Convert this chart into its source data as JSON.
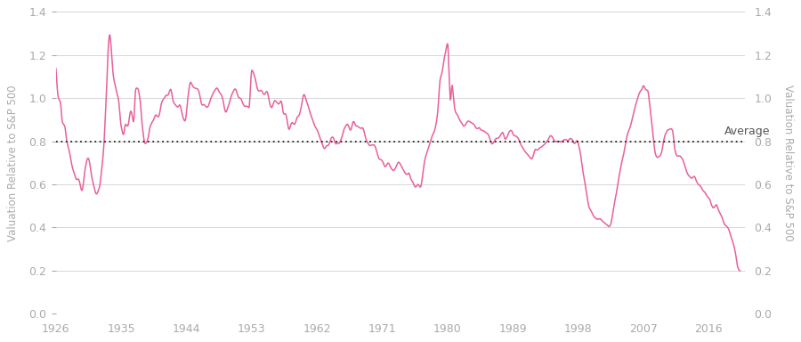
{
  "ylabel_left": "Valuation Relative to S&P 500",
  "ylabel_right": "Valuation Relative to S&P 500",
  "average_label": "Average",
  "average_value": 0.8,
  "line_color": "#e8609a",
  "dotted_line_color": "#222222",
  "background_color": "#ffffff",
  "grid_color": "#d0d0d0",
  "text_color": "#aaaaaa",
  "avg_text_color": "#555555",
  "ylim": [
    0.0,
    1.4
  ],
  "yticks": [
    0.0,
    0.2,
    0.4,
    0.6,
    0.8,
    1.0,
    1.2,
    1.4
  ],
  "xticks": [
    1926,
    1935,
    1944,
    1953,
    1962,
    1971,
    1980,
    1989,
    1998,
    2007,
    2016
  ],
  "xlim": [
    1926,
    2021
  ],
  "line_width": 1.1,
  "figsize": [
    9.0,
    3.84
  ],
  "dpi": 100,
  "anchors": [
    [
      1926.0,
      1.12
    ],
    [
      1926.3,
      1.01
    ],
    [
      1926.6,
      0.99
    ],
    [
      1926.9,
      0.89
    ],
    [
      1927.2,
      0.88
    ],
    [
      1927.5,
      0.8
    ],
    [
      1927.8,
      0.75
    ],
    [
      1928.1,
      0.72
    ],
    [
      1928.5,
      0.67
    ],
    [
      1929.0,
      0.63
    ],
    [
      1929.5,
      0.58
    ],
    [
      1930.0,
      0.65
    ],
    [
      1930.5,
      0.72
    ],
    [
      1931.0,
      0.63
    ],
    [
      1931.5,
      0.58
    ],
    [
      1932.0,
      0.57
    ],
    [
      1932.3,
      0.65
    ],
    [
      1932.6,
      0.78
    ],
    [
      1933.0,
      1.06
    ],
    [
      1933.2,
      1.21
    ],
    [
      1933.4,
      1.27
    ],
    [
      1933.6,
      1.22
    ],
    [
      1933.8,
      1.13
    ],
    [
      1934.0,
      1.07
    ],
    [
      1934.3,
      1.04
    ],
    [
      1934.6,
      1.0
    ],
    [
      1935.0,
      0.85
    ],
    [
      1935.3,
      0.82
    ],
    [
      1935.6,
      0.88
    ],
    [
      1935.9,
      0.87
    ],
    [
      1936.3,
      0.93
    ],
    [
      1936.7,
      0.88
    ],
    [
      1937.0,
      1.06
    ],
    [
      1937.3,
      1.08
    ],
    [
      1937.6,
      1.02
    ],
    [
      1937.9,
      0.9
    ],
    [
      1938.3,
      0.82
    ],
    [
      1938.7,
      0.82
    ],
    [
      1939.0,
      0.85
    ],
    [
      1939.4,
      0.88
    ],
    [
      1939.8,
      0.92
    ],
    [
      1940.2,
      0.93
    ],
    [
      1940.6,
      0.98
    ],
    [
      1941.0,
      1.0
    ],
    [
      1941.4,
      1.02
    ],
    [
      1941.8,
      1.04
    ],
    [
      1942.2,
      0.99
    ],
    [
      1942.6,
      0.97
    ],
    [
      1943.0,
      0.98
    ],
    [
      1943.4,
      0.93
    ],
    [
      1943.8,
      0.9
    ],
    [
      1944.2,
      1.0
    ],
    [
      1944.6,
      1.07
    ],
    [
      1945.0,
      1.05
    ],
    [
      1945.4,
      1.03
    ],
    [
      1945.8,
      1.01
    ],
    [
      1946.2,
      0.97
    ],
    [
      1946.6,
      0.97
    ],
    [
      1947.0,
      0.97
    ],
    [
      1947.4,
      1.0
    ],
    [
      1947.8,
      1.02
    ],
    [
      1948.2,
      1.04
    ],
    [
      1948.6,
      1.01
    ],
    [
      1949.0,
      1.0
    ],
    [
      1949.4,
      0.97
    ],
    [
      1949.8,
      0.98
    ],
    [
      1950.2,
      1.01
    ],
    [
      1950.6,
      1.02
    ],
    [
      1951.0,
      1.01
    ],
    [
      1951.4,
      1.0
    ],
    [
      1951.8,
      0.99
    ],
    [
      1952.2,
      0.96
    ],
    [
      1952.6,
      0.95
    ],
    [
      1953.0,
      1.14
    ],
    [
      1953.4,
      1.1
    ],
    [
      1953.8,
      1.06
    ],
    [
      1954.2,
      1.05
    ],
    [
      1954.6,
      1.04
    ],
    [
      1955.0,
      1.01
    ],
    [
      1955.4,
      0.98
    ],
    [
      1955.8,
      0.98
    ],
    [
      1956.2,
      0.99
    ],
    [
      1956.6,
      0.99
    ],
    [
      1957.0,
      1.0
    ],
    [
      1957.4,
      0.93
    ],
    [
      1957.8,
      0.92
    ],
    [
      1958.2,
      0.89
    ],
    [
      1958.6,
      0.89
    ],
    [
      1959.0,
      0.88
    ],
    [
      1959.4,
      0.9
    ],
    [
      1959.8,
      0.96
    ],
    [
      1960.2,
      1.01
    ],
    [
      1960.6,
      0.99
    ],
    [
      1961.0,
      0.97
    ],
    [
      1961.4,
      0.93
    ],
    [
      1961.8,
      0.88
    ],
    [
      1962.2,
      0.83
    ],
    [
      1962.6,
      0.79
    ],
    [
      1963.0,
      0.75
    ],
    [
      1963.4,
      0.79
    ],
    [
      1963.8,
      0.82
    ],
    [
      1964.2,
      0.83
    ],
    [
      1964.6,
      0.8
    ],
    [
      1965.0,
      0.79
    ],
    [
      1965.4,
      0.82
    ],
    [
      1965.8,
      0.86
    ],
    [
      1966.2,
      0.87
    ],
    [
      1966.6,
      0.86
    ],
    [
      1967.0,
      0.89
    ],
    [
      1967.4,
      0.87
    ],
    [
      1967.8,
      0.87
    ],
    [
      1968.2,
      0.87
    ],
    [
      1968.6,
      0.85
    ],
    [
      1969.0,
      0.82
    ],
    [
      1969.4,
      0.8
    ],
    [
      1969.8,
      0.77
    ],
    [
      1970.2,
      0.75
    ],
    [
      1970.6,
      0.73
    ],
    [
      1971.0,
      0.72
    ],
    [
      1971.4,
      0.7
    ],
    [
      1971.8,
      0.7
    ],
    [
      1972.2,
      0.69
    ],
    [
      1972.6,
      0.68
    ],
    [
      1973.0,
      0.68
    ],
    [
      1973.4,
      0.67
    ],
    [
      1973.8,
      0.66
    ],
    [
      1974.2,
      0.64
    ],
    [
      1974.6,
      0.63
    ],
    [
      1975.0,
      0.59
    ],
    [
      1975.4,
      0.58
    ],
    [
      1975.8,
      0.59
    ],
    [
      1976.2,
      0.61
    ],
    [
      1976.6,
      0.65
    ],
    [
      1977.0,
      0.71
    ],
    [
      1977.4,
      0.77
    ],
    [
      1977.8,
      0.81
    ],
    [
      1978.2,
      0.85
    ],
    [
      1978.6,
      0.92
    ],
    [
      1979.0,
      1.1
    ],
    [
      1979.3,
      1.14
    ],
    [
      1979.6,
      1.2
    ],
    [
      1980.0,
      1.25
    ],
    [
      1980.2,
      1.1
    ],
    [
      1980.4,
      0.98
    ],
    [
      1980.6,
      1.05
    ],
    [
      1980.8,
      1.0
    ],
    [
      1981.0,
      0.95
    ],
    [
      1981.3,
      0.93
    ],
    [
      1981.6,
      0.91
    ],
    [
      1981.9,
      0.9
    ],
    [
      1982.2,
      0.88
    ],
    [
      1982.5,
      0.89
    ],
    [
      1982.8,
      0.9
    ],
    [
      1983.1,
      0.9
    ],
    [
      1983.4,
      0.89
    ],
    [
      1983.7,
      0.88
    ],
    [
      1984.0,
      0.87
    ],
    [
      1984.3,
      0.87
    ],
    [
      1984.6,
      0.85
    ],
    [
      1984.9,
      0.84
    ],
    [
      1985.2,
      0.83
    ],
    [
      1985.5,
      0.82
    ],
    [
      1985.8,
      0.81
    ],
    [
      1986.1,
      0.8
    ],
    [
      1986.4,
      0.81
    ],
    [
      1986.7,
      0.82
    ],
    [
      1987.0,
      0.83
    ],
    [
      1987.3,
      0.83
    ],
    [
      1987.6,
      0.84
    ],
    [
      1987.9,
      0.82
    ],
    [
      1988.2,
      0.83
    ],
    [
      1988.5,
      0.84
    ],
    [
      1988.8,
      0.85
    ],
    [
      1989.1,
      0.83
    ],
    [
      1989.4,
      0.82
    ],
    [
      1989.7,
      0.81
    ],
    [
      1990.0,
      0.79
    ],
    [
      1990.3,
      0.78
    ],
    [
      1990.6,
      0.76
    ],
    [
      1990.9,
      0.74
    ],
    [
      1991.2,
      0.73
    ],
    [
      1991.5,
      0.73
    ],
    [
      1991.8,
      0.74
    ],
    [
      1992.1,
      0.76
    ],
    [
      1992.4,
      0.76
    ],
    [
      1992.7,
      0.77
    ],
    [
      1993.0,
      0.78
    ],
    [
      1993.3,
      0.79
    ],
    [
      1993.6,
      0.8
    ],
    [
      1993.9,
      0.81
    ],
    [
      1994.2,
      0.82
    ],
    [
      1994.5,
      0.82
    ],
    [
      1994.8,
      0.81
    ],
    [
      1995.1,
      0.81
    ],
    [
      1995.4,
      0.81
    ],
    [
      1995.7,
      0.8
    ],
    [
      1996.0,
      0.8
    ],
    [
      1996.3,
      0.8
    ],
    [
      1996.6,
      0.79
    ],
    [
      1996.9,
      0.8
    ],
    [
      1997.2,
      0.8
    ],
    [
      1997.5,
      0.79
    ],
    [
      1997.8,
      0.79
    ],
    [
      1998.0,
      0.78
    ],
    [
      1998.3,
      0.75
    ],
    [
      1998.6,
      0.68
    ],
    [
      1998.9,
      0.62
    ],
    [
      1999.2,
      0.55
    ],
    [
      1999.5,
      0.49
    ],
    [
      1999.8,
      0.47
    ],
    [
      2000.1,
      0.46
    ],
    [
      2000.4,
      0.45
    ],
    [
      2000.7,
      0.44
    ],
    [
      2001.0,
      0.44
    ],
    [
      2001.3,
      0.43
    ],
    [
      2001.6,
      0.42
    ],
    [
      2001.9,
      0.41
    ],
    [
      2002.2,
      0.4
    ],
    [
      2002.5,
      0.42
    ],
    [
      2002.8,
      0.47
    ],
    [
      2003.2,
      0.55
    ],
    [
      2003.6,
      0.63
    ],
    [
      2004.0,
      0.7
    ],
    [
      2004.4,
      0.76
    ],
    [
      2004.8,
      0.82
    ],
    [
      2005.2,
      0.87
    ],
    [
      2005.6,
      0.92
    ],
    [
      2006.0,
      0.97
    ],
    [
      2006.4,
      1.01
    ],
    [
      2006.8,
      1.04
    ],
    [
      2007.0,
      1.06
    ],
    [
      2007.2,
      1.05
    ],
    [
      2007.4,
      1.04
    ],
    [
      2007.6,
      1.03
    ],
    [
      2007.8,
      0.98
    ],
    [
      2008.0,
      0.92
    ],
    [
      2008.3,
      0.82
    ],
    [
      2008.6,
      0.74
    ],
    [
      2008.9,
      0.72
    ],
    [
      2009.2,
      0.73
    ],
    [
      2009.5,
      0.75
    ],
    [
      2009.8,
      0.8
    ],
    [
      2010.1,
      0.84
    ],
    [
      2010.4,
      0.86
    ],
    [
      2010.7,
      0.86
    ],
    [
      2011.0,
      0.85
    ],
    [
      2011.3,
      0.77
    ],
    [
      2011.6,
      0.73
    ],
    [
      2011.9,
      0.72
    ],
    [
      2012.2,
      0.71
    ],
    [
      2012.5,
      0.7
    ],
    [
      2012.8,
      0.68
    ],
    [
      2013.1,
      0.66
    ],
    [
      2013.4,
      0.65
    ],
    [
      2013.7,
      0.64
    ],
    [
      2014.0,
      0.64
    ],
    [
      2014.3,
      0.62
    ],
    [
      2014.6,
      0.6
    ],
    [
      2014.9,
      0.59
    ],
    [
      2015.2,
      0.57
    ],
    [
      2015.5,
      0.56
    ],
    [
      2015.8,
      0.55
    ],
    [
      2016.1,
      0.55
    ],
    [
      2016.4,
      0.52
    ],
    [
      2016.7,
      0.5
    ],
    [
      2017.0,
      0.5
    ],
    [
      2017.3,
      0.47
    ],
    [
      2017.6,
      0.45
    ],
    [
      2017.9,
      0.44
    ],
    [
      2018.2,
      0.42
    ],
    [
      2018.5,
      0.4
    ],
    [
      2018.8,
      0.38
    ],
    [
      2019.1,
      0.35
    ],
    [
      2019.4,
      0.32
    ],
    [
      2019.7,
      0.28
    ],
    [
      2020.0,
      0.22
    ],
    [
      2020.3,
      0.2
    ]
  ]
}
